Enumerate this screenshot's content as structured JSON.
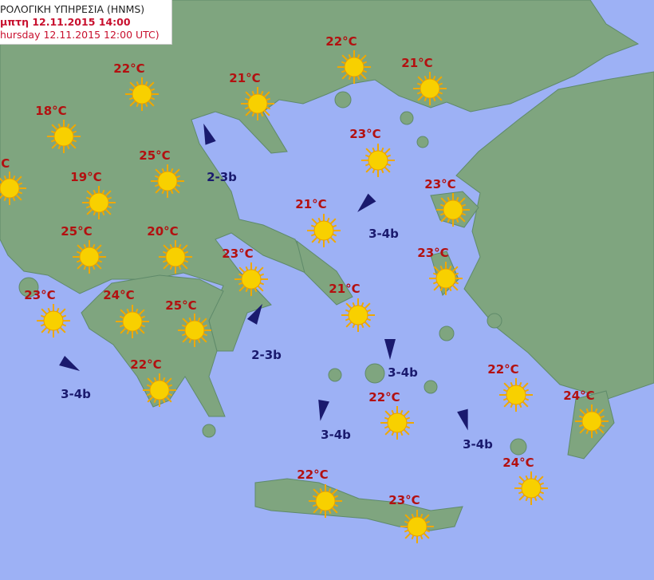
{
  "header": {
    "line1": "ΡΟΛΟΓΙΚΗ ΥΠΗΡΕΣΙΑ (HNMS)",
    "line2": "μπτη 12.11.2015 14:00",
    "line3": "hursday 12.11.2015 12:00 UTC)"
  },
  "colors": {
    "sea": "#9db1f5",
    "land": "#7fa57f",
    "temperature": "#b31010",
    "wind": "#1a1a6e",
    "sun": "#f8d000"
  },
  "stations": [
    {
      "temp": "22°C",
      "icon": "sun-icon"
    },
    {
      "temp": "21°C",
      "icon": "sun-icon"
    },
    {
      "temp": "22°C",
      "icon": "sun-icon"
    },
    {
      "temp": "21°C",
      "icon": "sun-icon"
    },
    {
      "temp": "18°C",
      "icon": "sun-icon"
    },
    {
      "temp": "23°C",
      "icon": "sun-icon"
    },
    {
      "temp": "25°C",
      "icon": "sun-icon"
    },
    {
      "temp": "°C",
      "icon": "sun-icon"
    },
    {
      "temp": "19°C",
      "icon": "sun-icon"
    },
    {
      "temp": "23°C",
      "icon": "sun-icon"
    },
    {
      "temp": "21°C",
      "icon": "sun-icon"
    },
    {
      "temp": "25°C",
      "icon": "sun-icon"
    },
    {
      "temp": "20°C",
      "icon": "sun-icon"
    },
    {
      "temp": "23°C",
      "icon": "sun-icon"
    },
    {
      "temp": "23°C",
      "icon": "sun-icon"
    },
    {
      "temp": "21°C",
      "icon": "sun-icon"
    },
    {
      "temp": "23°C",
      "icon": "sun-icon"
    },
    {
      "temp": "24°C",
      "icon": "sun-icon"
    },
    {
      "temp": "25°C",
      "icon": "sun-icon"
    },
    {
      "temp": "22°C",
      "icon": "sun-icon"
    },
    {
      "temp": "22°C",
      "icon": "sun-icon"
    },
    {
      "temp": "22°C",
      "icon": "sun-icon"
    },
    {
      "temp": "24°C",
      "icon": "sun-icon"
    },
    {
      "temp": "22°C",
      "icon": "sun-icon"
    },
    {
      "temp": "24°C",
      "icon": "sun-icon"
    },
    {
      "temp": "23°C",
      "icon": "sun-icon"
    }
  ],
  "winds": [
    {
      "force": "2-3b",
      "direction_deg": 340
    },
    {
      "force": "3-4b",
      "direction_deg": 225
    },
    {
      "force": "3-4b",
      "direction_deg": 120
    },
    {
      "force": "2-3b",
      "direction_deg": 30
    },
    {
      "force": "3-4b",
      "direction_deg": 180
    },
    {
      "force": "3-4b",
      "direction_deg": 190
    },
    {
      "force": "3-4b",
      "direction_deg": 165
    }
  ]
}
